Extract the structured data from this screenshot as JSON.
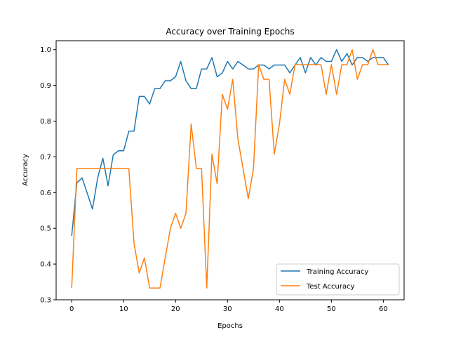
{
  "chart_data": {
    "type": "line",
    "title": "Accuracy over Training Epochs",
    "xlabel": "Epochs",
    "ylabel": "Accuracy",
    "xlim": [
      -3,
      64
    ],
    "ylim": [
      0.3,
      1.025
    ],
    "xticks": [
      0,
      10,
      20,
      30,
      40,
      50,
      60
    ],
    "yticks": [
      0.3,
      0.4,
      0.5,
      0.6,
      0.7,
      0.8,
      0.9,
      1.0
    ],
    "legend": "lower-right",
    "grid": false,
    "x": [
      0,
      1,
      2,
      3,
      4,
      5,
      6,
      7,
      8,
      9,
      10,
      11,
      12,
      13,
      14,
      15,
      16,
      17,
      18,
      19,
      20,
      21,
      22,
      23,
      24,
      25,
      26,
      27,
      28,
      29,
      30,
      31,
      32,
      33,
      34,
      35,
      36,
      37,
      38,
      39,
      40,
      41,
      42,
      43,
      44,
      45,
      46,
      47,
      48,
      49,
      50,
      51,
      52,
      53,
      54,
      55,
      56,
      57,
      58,
      59,
      60,
      61
    ],
    "series": [
      {
        "name": "Training Accuracy",
        "color": "#1f77b4",
        "values": [
          0.479,
          0.628,
          0.641,
          0.598,
          0.554,
          0.641,
          0.696,
          0.619,
          0.706,
          0.717,
          0.717,
          0.772,
          0.772,
          0.869,
          0.869,
          0.848,
          0.891,
          0.891,
          0.913,
          0.913,
          0.924,
          0.967,
          0.913,
          0.891,
          0.891,
          0.946,
          0.946,
          0.978,
          0.924,
          0.935,
          0.967,
          0.946,
          0.967,
          0.957,
          0.946,
          0.946,
          0.957,
          0.957,
          0.946,
          0.957,
          0.957,
          0.957,
          0.935,
          0.957,
          0.978,
          0.935,
          0.978,
          0.957,
          0.978,
          0.967,
          0.967,
          1.0,
          0.967,
          0.989,
          0.957,
          0.978,
          0.978,
          0.967,
          0.978,
          0.978,
          0.978,
          0.957
        ]
      },
      {
        "name": "Test Accuracy",
        "color": "#ff7f0e",
        "values": [
          0.333,
          0.667,
          0.667,
          0.667,
          0.667,
          0.667,
          0.667,
          0.667,
          0.667,
          0.667,
          0.667,
          0.667,
          0.458,
          0.375,
          0.417,
          0.333,
          0.333,
          0.333,
          0.417,
          0.5,
          0.542,
          0.5,
          0.542,
          0.792,
          0.667,
          0.667,
          0.333,
          0.708,
          0.625,
          0.875,
          0.833,
          0.917,
          0.75,
          0.667,
          0.583,
          0.667,
          0.958,
          0.917,
          0.917,
          0.708,
          0.792,
          0.917,
          0.875,
          0.958,
          0.958,
          0.958,
          0.958,
          0.958,
          0.958,
          0.875,
          0.958,
          0.875,
          0.958,
          0.958,
          1.0,
          0.917,
          0.958,
          0.958,
          1.0,
          0.958,
          0.958,
          0.958
        ]
      }
    ]
  }
}
